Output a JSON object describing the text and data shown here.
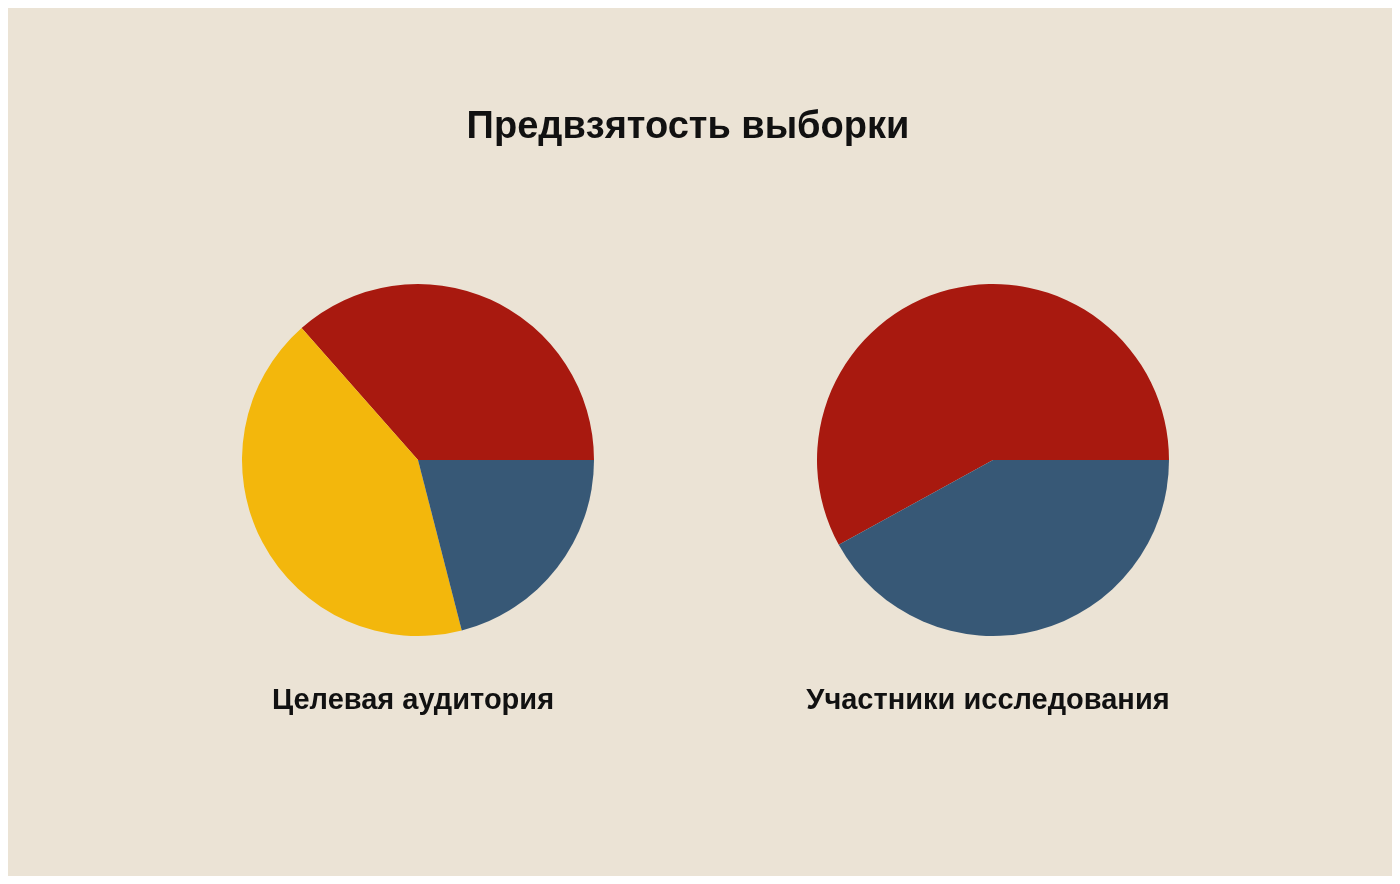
{
  "chart_data": [
    {
      "type": "pie",
      "title": "Предвзятость выборки",
      "xlabel": "Целевая аудитория",
      "categories": [
        null,
        null,
        null
      ],
      "values": [
        36.5,
        42.5,
        21
      ],
      "colors": [
        "#a8190f",
        "#f3b70c",
        "#375876"
      ]
    },
    {
      "type": "pie",
      "xlabel": "Участники исследования",
      "categories": [
        null,
        null
      ],
      "values": [
        58,
        42
      ],
      "colors": [
        "#a8190f",
        "#375876"
      ]
    }
  ]
}
